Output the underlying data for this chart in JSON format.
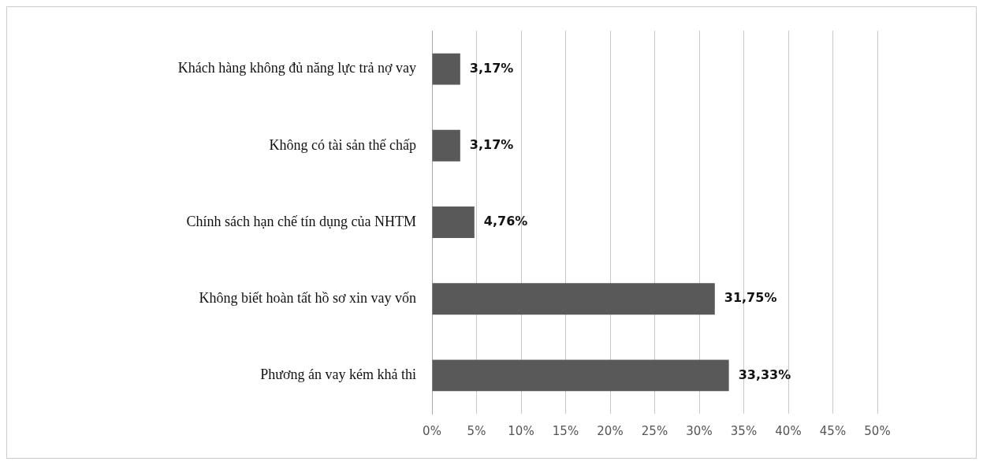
{
  "chart_data": {
    "type": "bar",
    "orientation": "horizontal",
    "categories": [
      "Khách hàng không đủ năng lực trả nợ vay",
      "Không có tài sản thế chấp",
      "Chính sách hạn chế tín dụng của NHTM",
      "Không biết hoàn tất hồ sơ xin vay vốn",
      "Phương án vay kém khả thi"
    ],
    "values": [
      3.17,
      3.17,
      4.76,
      31.75,
      33.33
    ],
    "value_labels": [
      "3,17%",
      "3,17%",
      "4,76%",
      "31,75%",
      "33,33%"
    ],
    "color": "#595959",
    "xlim": [
      0,
      50
    ],
    "xticks": [
      {
        "value": 0,
        "label": "0%"
      },
      {
        "value": 5,
        "label": "5%"
      },
      {
        "value": 10,
        "label": "10%"
      },
      {
        "value": 15,
        "label": "15%"
      },
      {
        "value": 20,
        "label": "20%"
      },
      {
        "value": 25,
        "label": "25%"
      },
      {
        "value": 30,
        "label": "30%"
      },
      {
        "value": 35,
        "label": "35%"
      },
      {
        "value": 40,
        "label": "40%"
      },
      {
        "value": 45,
        "label": "45%"
      },
      {
        "value": 50,
        "label": "50%"
      }
    ],
    "grid": "x",
    "legend": false
  }
}
